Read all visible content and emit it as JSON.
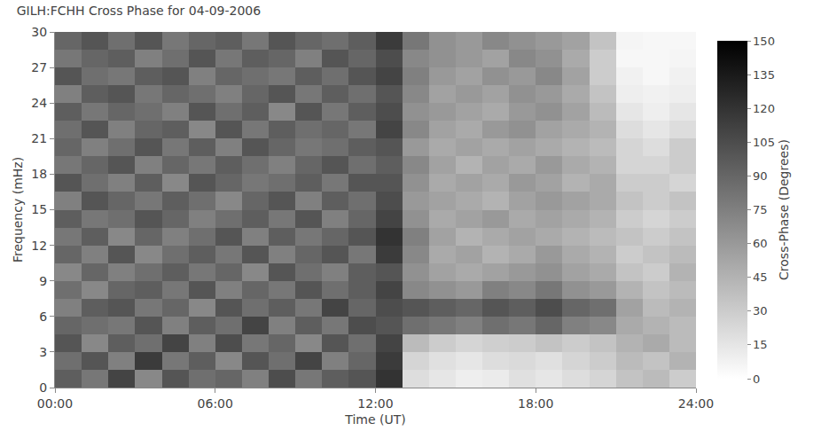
{
  "chart_data": {
    "type": "heatmap",
    "title": "GILH:FCHH Cross Phase for 04-09-2006",
    "x_label": "Time (UT)",
    "y_label": "Frequency (mHz)",
    "colorbar_label": "Cross-Phase (Degrees)",
    "color": [
      "#ffffff",
      "#000000"
    ],
    "xlim": [
      0,
      24
    ],
    "xticks": [
      {
        "value": 0,
        "label": "00:00"
      },
      {
        "value": 6,
        "label": "06:00"
      },
      {
        "value": 12,
        "label": "12:00"
      },
      {
        "value": 18,
        "label": "18:00"
      },
      {
        "value": 24,
        "label": "24:00"
      }
    ],
    "ylim": [
      0,
      30
    ],
    "yticks": [
      0,
      3,
      6,
      9,
      12,
      15,
      18,
      21,
      24,
      27,
      30
    ],
    "zlim": [
      0,
      150
    ],
    "zticks": [
      0,
      15,
      30,
      45,
      60,
      75,
      90,
      105,
      120,
      135,
      150
    ],
    "x": [
      0.5,
      1.5,
      2.5,
      3.5,
      4.5,
      5.5,
      6.5,
      7.5,
      8.5,
      9.5,
      10.5,
      11.5,
      12.5,
      13.5,
      14.5,
      15.5,
      16.5,
      17.5,
      18.5,
      19.5,
      20.5,
      21.5,
      22.5,
      23.5
    ],
    "y": [
      0.75,
      2.25,
      3.75,
      5.25,
      6.75,
      8.25,
      9.75,
      11.25,
      12.75,
      14.25,
      15.75,
      17.25,
      18.75,
      20.25,
      21.75,
      23.25,
      24.75,
      26.25,
      27.75,
      29.25
    ],
    "z": [
      [
        95,
        80,
        110,
        70,
        100,
        85,
        90,
        75,
        105,
        80,
        95,
        100,
        120,
        20,
        15,
        10,
        12,
        18,
        15,
        20,
        25,
        35,
        40,
        30
      ],
      [
        85,
        100,
        75,
        115,
        80,
        95,
        70,
        100,
        85,
        110,
        75,
        90,
        115,
        25,
        18,
        15,
        20,
        22,
        18,
        25,
        30,
        40,
        35,
        45
      ],
      [
        100,
        70,
        95,
        85,
        110,
        75,
        105,
        80,
        90,
        70,
        100,
        85,
        110,
        40,
        30,
        25,
        28,
        30,
        35,
        30,
        35,
        45,
        50,
        40
      ],
      [
        90,
        85,
        80,
        100,
        75,
        95,
        85,
        110,
        75,
        95,
        80,
        105,
        100,
        85,
        80,
        75,
        85,
        80,
        90,
        75,
        70,
        50,
        45,
        40
      ],
      [
        75,
        95,
        100,
        80,
        90,
        70,
        100,
        85,
        95,
        80,
        110,
        90,
        105,
        100,
        95,
        90,
        100,
        95,
        105,
        90,
        85,
        55,
        40,
        45
      ],
      [
        85,
        70,
        90,
        95,
        80,
        100,
        75,
        90,
        80,
        100,
        85,
        95,
        110,
        70,
        65,
        60,
        75,
        70,
        80,
        65,
        60,
        45,
        35,
        40
      ],
      [
        70,
        90,
        75,
        85,
        95,
        80,
        90,
        70,
        100,
        85,
        75,
        95,
        100,
        65,
        55,
        50,
        55,
        60,
        65,
        55,
        50,
        35,
        30,
        45
      ],
      [
        90,
        75,
        100,
        70,
        85,
        95,
        80,
        100,
        75,
        90,
        100,
        80,
        115,
        70,
        50,
        55,
        45,
        50,
        60,
        50,
        45,
        30,
        35,
        40
      ],
      [
        80,
        95,
        70,
        90,
        75,
        85,
        100,
        75,
        95,
        80,
        90,
        100,
        120,
        75,
        55,
        45,
        50,
        55,
        50,
        45,
        40,
        35,
        30,
        35
      ],
      [
        95,
        80,
        85,
        100,
        90,
        75,
        85,
        95,
        80,
        100,
        75,
        90,
        110,
        65,
        50,
        55,
        60,
        50,
        55,
        50,
        45,
        30,
        25,
        30
      ],
      [
        75,
        100,
        90,
        80,
        95,
        85,
        70,
        90,
        100,
        75,
        95,
        85,
        105,
        60,
        55,
        50,
        45,
        55,
        60,
        55,
        50,
        35,
        30,
        35
      ],
      [
        100,
        85,
        75,
        95,
        70,
        100,
        90,
        80,
        85,
        95,
        80,
        100,
        100,
        65,
        50,
        55,
        50,
        60,
        55,
        45,
        50,
        30,
        30,
        25
      ],
      [
        80,
        90,
        100,
        75,
        90,
        80,
        95,
        85,
        75,
        90,
        100,
        85,
        95,
        70,
        55,
        45,
        55,
        50,
        60,
        50,
        45,
        25,
        25,
        30
      ],
      [
        90,
        75,
        85,
        100,
        80,
        95,
        75,
        100,
        90,
        80,
        85,
        95,
        100,
        60,
        50,
        55,
        50,
        55,
        50,
        45,
        40,
        25,
        20,
        30
      ],
      [
        85,
        100,
        75,
        90,
        95,
        70,
        100,
        80,
        95,
        85,
        90,
        80,
        110,
        70,
        55,
        50,
        60,
        65,
        55,
        50,
        45,
        20,
        15,
        20
      ],
      [
        95,
        80,
        90,
        85,
        75,
        100,
        85,
        95,
        70,
        100,
        80,
        95,
        105,
        65,
        60,
        55,
        50,
        60,
        65,
        55,
        40,
        15,
        10,
        15
      ],
      [
        75,
        95,
        100,
        80,
        90,
        85,
        75,
        90,
        100,
        80,
        95,
        85,
        100,
        70,
        55,
        60,
        55,
        65,
        60,
        50,
        35,
        10,
        8,
        10
      ],
      [
        100,
        85,
        80,
        95,
        100,
        75,
        90,
        85,
        80,
        95,
        85,
        100,
        110,
        75,
        60,
        55,
        65,
        60,
        70,
        55,
        30,
        8,
        5,
        8
      ],
      [
        80,
        90,
        95,
        75,
        85,
        100,
        80,
        95,
        90,
        75,
        100,
        90,
        105,
        70,
        65,
        60,
        55,
        70,
        65,
        50,
        30,
        5,
        5,
        6
      ],
      [
        90,
        100,
        85,
        100,
        80,
        90,
        95,
        80,
        100,
        90,
        85,
        95,
        115,
        80,
        65,
        60,
        70,
        65,
        60,
        55,
        35,
        6,
        5,
        5
      ]
    ]
  }
}
